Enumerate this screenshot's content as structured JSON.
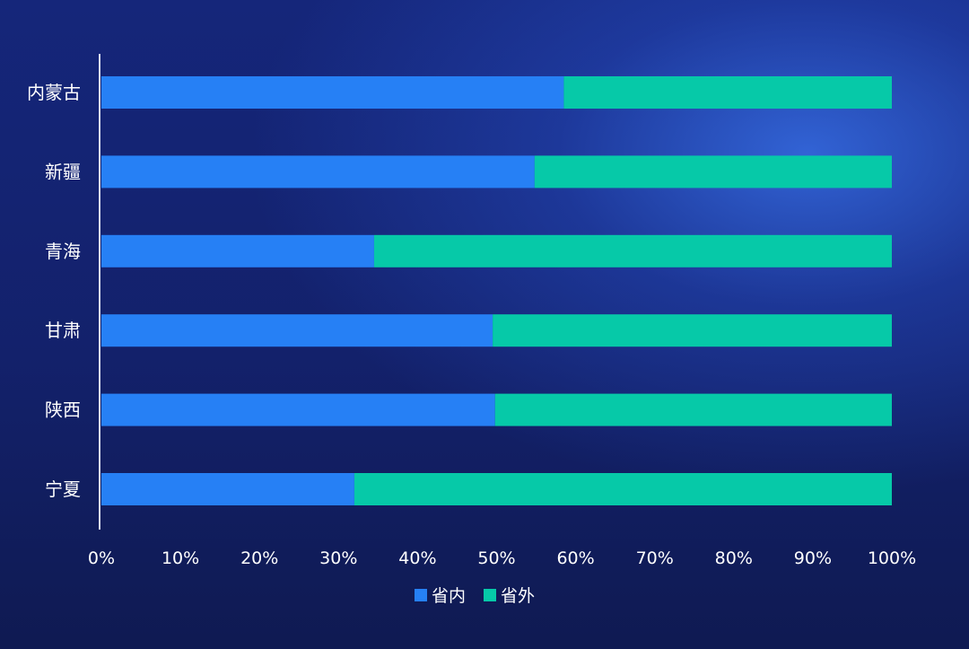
{
  "chart_data": {
    "type": "bar",
    "orientation": "horizontal",
    "stacked": true,
    "categories": [
      "内蒙古",
      "新疆",
      "青海",
      "甘肃",
      "陕西",
      "宁夏"
    ],
    "series": [
      {
        "name": "省内",
        "values": [
          58.5,
          54.8,
          34.5,
          49.5,
          49.8,
          32.0
        ]
      },
      {
        "name": "省外",
        "values": [
          41.5,
          45.2,
          65.5,
          50.5,
          50.2,
          68.0
        ]
      }
    ],
    "xlim": [
      0,
      100
    ],
    "xticks": [
      "0%",
      "10%",
      "20%",
      "30%",
      "40%",
      "50%",
      "60%",
      "70%",
      "80%",
      "90%",
      "100%"
    ],
    "title": "",
    "xlabel": "",
    "ylabel": "",
    "grid": false,
    "legend_position": "bottom",
    "colors": {
      "省内": "#2680f5",
      "省外": "#06c9a8",
      "axis": "#d8dcef",
      "text": "#ffffff"
    }
  }
}
